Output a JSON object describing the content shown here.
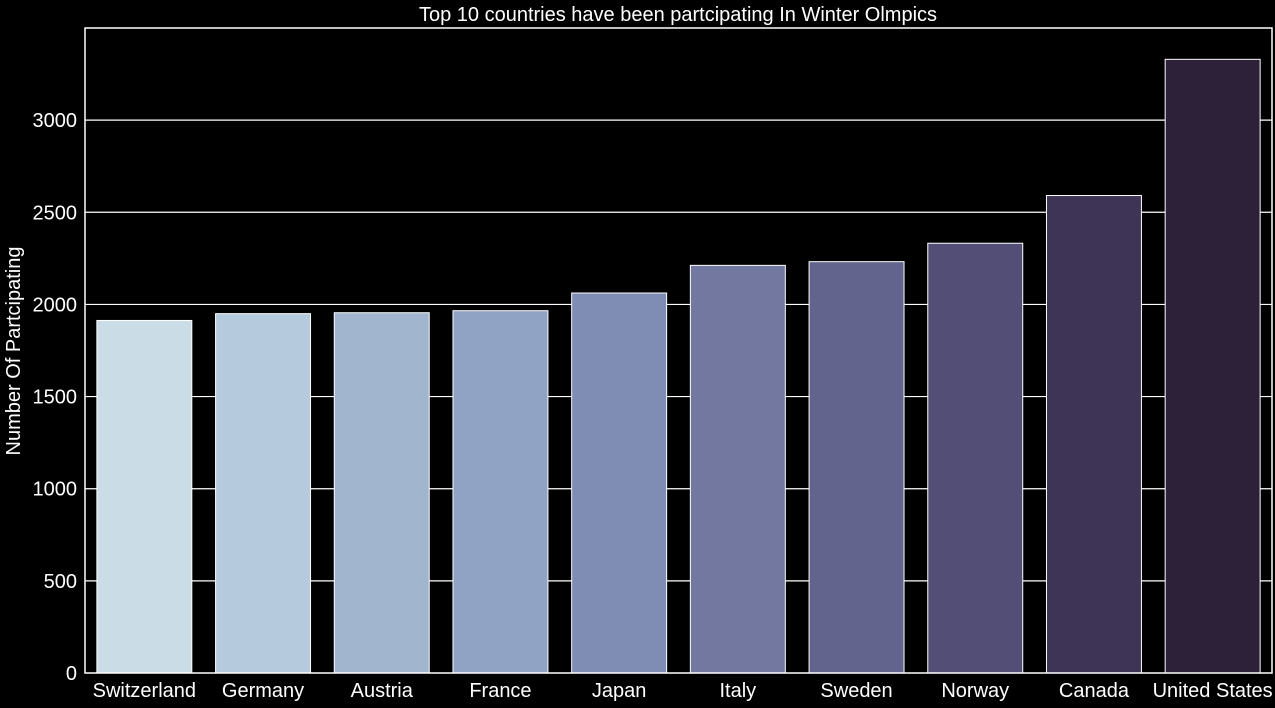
{
  "chart_data": {
    "type": "bar",
    "title": "Top 10 countries have been partcipating In Winter Olmpics",
    "xlabel": "",
    "ylabel": "Number Of Partcipating",
    "categories": [
      "Switzerland",
      "Germany",
      "Austria",
      "France",
      "Japan",
      "Italy",
      "Sweden",
      "Norway",
      "Canada",
      "United States"
    ],
    "values": [
      1913,
      1950,
      1955,
      1966,
      2062,
      2212,
      2232,
      2332,
      2591,
      3330
    ],
    "ylim": [
      0,
      3500
    ],
    "yticks": [
      0,
      500,
      1000,
      1500,
      2000,
      2500,
      3000
    ],
    "grid": "horizontal",
    "colors": {
      "background": "#000000",
      "text": "#ffffff",
      "grid": "#ffffff",
      "bar_edge": "#ffffff",
      "bars": [
        "#cadde6",
        "#b5cadc",
        "#a2b5cf",
        "#91a3c4",
        "#7f8cb3",
        "#72789f",
        "#63648d",
        "#524e76",
        "#3e3556",
        "#2c2138"
      ]
    }
  }
}
